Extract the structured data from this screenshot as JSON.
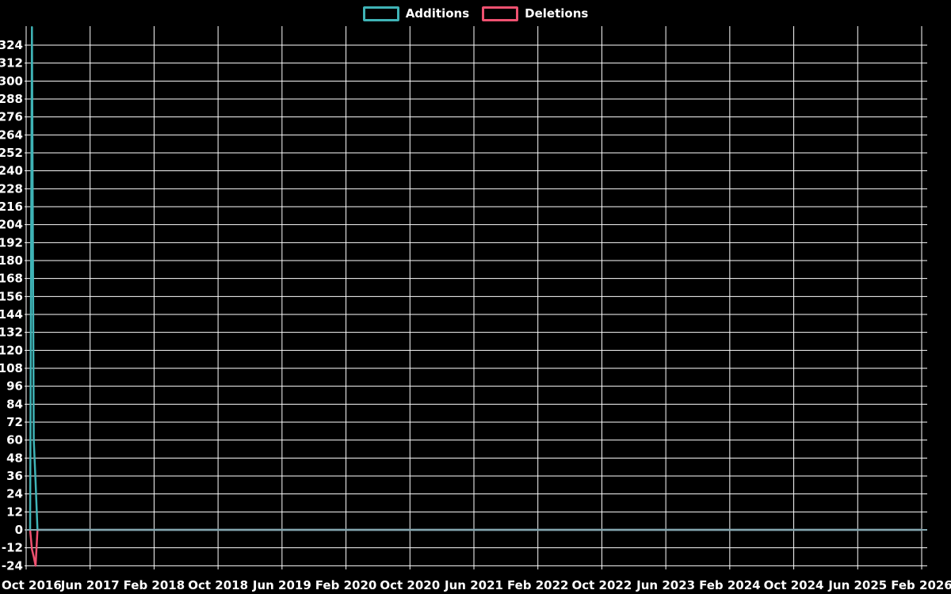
{
  "chart_data": {
    "type": "line",
    "title": "",
    "legend_position": "top-center",
    "grid": true,
    "background_color": "#000000",
    "grid_color": "#ffffff",
    "text_color": "#ffffff",
    "zero_line_color": "#84a7af",
    "x_axis": {
      "tick_labels": [
        "Oct 2016",
        "Jun 2017",
        "Feb 2018",
        "Oct 2018",
        "Jun 2019",
        "Feb 2020",
        "Oct 2020",
        "Jun 2021",
        "Feb 2022",
        "Oct 2022",
        "Jun 2023",
        "Feb 2024",
        "Oct 2024",
        "Jun 2025",
        "Feb 2026"
      ],
      "start": "Oct 2016",
      "end": "Feb 2026",
      "tick_interval_months": 8
    },
    "y_axis": {
      "min": -24,
      "max": 336,
      "tick_step": 12,
      "first_tick_label": -24,
      "last_tick_label": 324
    },
    "series": [
      {
        "name": "Additions",
        "color": "#3fb3b6",
        "points": [
          {
            "date": "2016-10-16",
            "value": 0
          },
          {
            "date": "2016-10-23",
            "value": 336
          },
          {
            "date": "2016-10-30",
            "value": 60
          },
          {
            "date": "2016-11-06",
            "value": 32
          },
          {
            "date": "2016-11-13",
            "value": 0
          },
          {
            "date": "2026-02-01",
            "value": 0
          }
        ]
      },
      {
        "name": "Deletions",
        "color": "#ee5170",
        "points": [
          {
            "date": "2016-10-16",
            "value": 0
          },
          {
            "date": "2016-10-23",
            "value": -13
          },
          {
            "date": "2016-10-30",
            "value": -18
          },
          {
            "date": "2016-11-06",
            "value": -24
          },
          {
            "date": "2016-11-13",
            "value": 0
          },
          {
            "date": "2026-02-01",
            "value": 0
          }
        ]
      }
    ]
  }
}
